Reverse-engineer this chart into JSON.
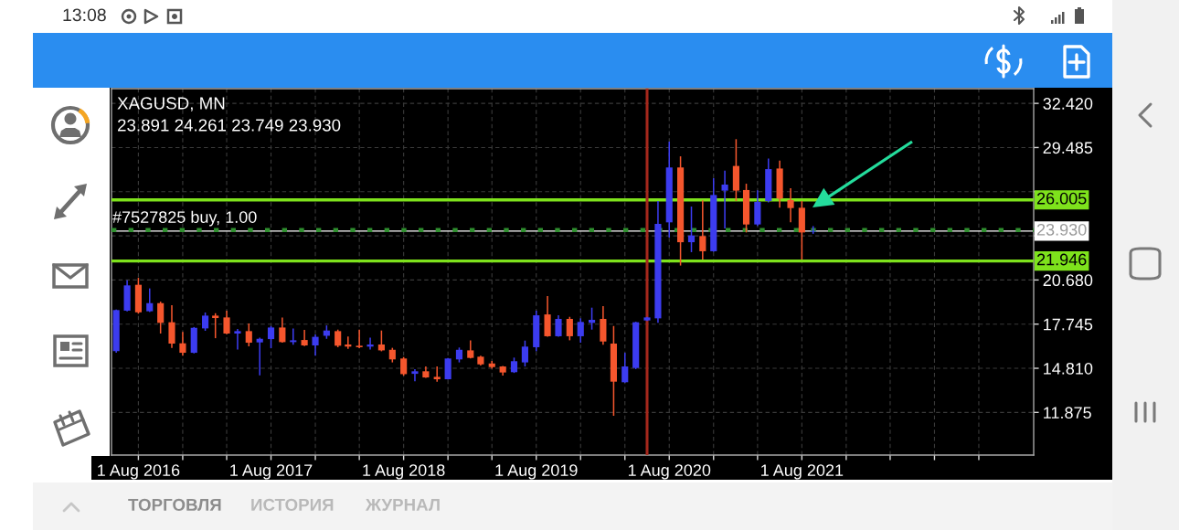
{
  "chart_data": {
    "type": "candlestick",
    "title": "XAGUSD, MN",
    "subtitle": "23.891 24.261 23.749 23.930",
    "annotations": [
      "13:08",
      "ТОРГОВЛЯ",
      "ИСТОРИЯ",
      "ЖУРНАЛ"
    ],
    "x": [
      "2016-06",
      "2016-07",
      "2016-08",
      "2016-09",
      "2016-10",
      "2016-11",
      "2016-12",
      "2017-01",
      "2017-02",
      "2017-03",
      "2017-04",
      "2017-05",
      "2017-06",
      "2017-07",
      "2017-08",
      "2017-09",
      "2017-10",
      "2017-11",
      "2017-12",
      "2018-01",
      "2018-02",
      "2018-03",
      "2018-04",
      "2018-05",
      "2018-06",
      "2018-07",
      "2018-08",
      "2018-09",
      "2018-10",
      "2018-11",
      "2018-12",
      "2019-01",
      "2019-02",
      "2019-03",
      "2019-04",
      "2019-05",
      "2019-06",
      "2019-07",
      "2019-08",
      "2019-09",
      "2019-10",
      "2019-11",
      "2019-12",
      "2020-01",
      "2020-02",
      "2020-03",
      "2020-04",
      "2020-05",
      "2020-06",
      "2020-07",
      "2020-08",
      "2020-09",
      "2020-10",
      "2020-11",
      "2020-12",
      "2021-01",
      "2021-02",
      "2021-03",
      "2021-04",
      "2021-05",
      "2021-06",
      "2021-07",
      "2021-08",
      "2021-09"
    ],
    "ohlc": [
      [
        15.95,
        18.72,
        15.84,
        18.68
      ],
      [
        18.64,
        20.66,
        18.6,
        20.32
      ],
      [
        20.36,
        20.82,
        18.44,
        18.53
      ],
      [
        18.6,
        20.12,
        18.55,
        19.14
      ],
      [
        19.14,
        19.24,
        17.12,
        17.83
      ],
      [
        17.87,
        19.0,
        16.17,
        16.45
      ],
      [
        16.47,
        17.22,
        15.64,
        15.84
      ],
      [
        15.84,
        17.55,
        15.8,
        17.5
      ],
      [
        17.46,
        18.52,
        17.3,
        18.31
      ],
      [
        18.31,
        18.47,
        16.81,
        18.15
      ],
      [
        18.19,
        18.64,
        17.08,
        17.12
      ],
      [
        17.12,
        17.42,
        16.06,
        17.28
      ],
      [
        17.28,
        17.79,
        16.27,
        16.51
      ],
      [
        16.53,
        16.85,
        14.34,
        16.77
      ],
      [
        16.75,
        17.62,
        16.15,
        17.52
      ],
      [
        17.52,
        18.19,
        16.51,
        16.55
      ],
      [
        16.55,
        17.46,
        16.37,
        16.67
      ],
      [
        16.69,
        17.36,
        16.29,
        16.33
      ],
      [
        16.33,
        17.06,
        15.64,
        16.9
      ],
      [
        16.97,
        17.66,
        16.77,
        17.32
      ],
      [
        17.28,
        17.38,
        16.21,
        16.31
      ],
      [
        16.39,
        16.92,
        16.1,
        16.25
      ],
      [
        16.31,
        17.38,
        16.15,
        16.21
      ],
      [
        16.25,
        16.85,
        16.06,
        16.39
      ],
      [
        16.39,
        17.32,
        15.94,
        16.0
      ],
      [
        16.04,
        16.17,
        15.2,
        15.4
      ],
      [
        15.46,
        15.56,
        14.32,
        14.42
      ],
      [
        14.44,
        14.75,
        13.94,
        14.61
      ],
      [
        14.61,
        14.93,
        14.18,
        14.2
      ],
      [
        14.24,
        14.93,
        13.92,
        14.08
      ],
      [
        14.08,
        15.5,
        14.06,
        15.46
      ],
      [
        15.4,
        16.19,
        15.2,
        16.04
      ],
      [
        16.0,
        16.67,
        15.46,
        15.5
      ],
      [
        15.58,
        15.64,
        14.99,
        15.07
      ],
      [
        15.13,
        15.3,
        14.79,
        14.89
      ],
      [
        14.93,
        14.97,
        14.32,
        14.53
      ],
      [
        14.55,
        15.52,
        14.5,
        15.28
      ],
      [
        15.2,
        16.65,
        14.93,
        16.25
      ],
      [
        16.21,
        18.64,
        15.94,
        18.33
      ],
      [
        18.39,
        19.61,
        16.9,
        16.94
      ],
      [
        16.94,
        18.33,
        16.9,
        18.09
      ],
      [
        18.09,
        18.23,
        16.67,
        16.94
      ],
      [
        16.94,
        18.13,
        16.51,
        17.89
      ],
      [
        17.83,
        18.84,
        17.38,
        18.03
      ],
      [
        18.09,
        18.94,
        16.37,
        16.59
      ],
      [
        16.45,
        17.62,
        11.65,
        13.92
      ],
      [
        13.88,
        15.84,
        13.85,
        14.93
      ],
      [
        14.83,
        17.9,
        14.75,
        17.87
      ],
      [
        17.99,
        18.23,
        17.95,
        18.19
      ],
      [
        18.13,
        25.93,
        17.83,
        24.41
      ],
      [
        24.51,
        29.88,
        23.5,
        28.16
      ],
      [
        28.16,
        28.9,
        21.64,
        23.19
      ],
      [
        23.19,
        25.56,
        22.53,
        23.64
      ],
      [
        23.6,
        25.97,
        22.04,
        22.59
      ],
      [
        22.59,
        27.45,
        22.55,
        26.33
      ],
      [
        26.62,
        27.95,
        24.11,
        27.02
      ],
      [
        28.26,
        30.04,
        25.93,
        26.62
      ],
      [
        26.66,
        27.08,
        23.84,
        24.37
      ],
      [
        24.37,
        26.64,
        24.27,
        25.87
      ],
      [
        25.93,
        28.76,
        25.83,
        28.05
      ],
      [
        28.09,
        28.62,
        25.48,
        26.09
      ],
      [
        25.99,
        26.78,
        24.51,
        25.46
      ],
      [
        25.48,
        25.93,
        22.04,
        23.84
      ],
      [
        23.891,
        24.261,
        23.749,
        23.93
      ]
    ],
    "colors": [
      "#3c3cf0",
      "#3c3cf0",
      "#f5562d",
      "#3c3cf0",
      "#f5562d",
      "#f5562d",
      "#f5562d",
      "#3c3cf0",
      "#3c3cf0",
      "#f5562d",
      "#f5562d",
      "#3c3cf0",
      "#f5562d",
      "#3c3cf0",
      "#3c3cf0",
      "#f5562d",
      "#3c3cf0",
      "#f5562d",
      "#3c3cf0",
      "#3c3cf0",
      "#f5562d",
      "#f5562d",
      "#f5562d",
      "#3c3cf0",
      "#f5562d",
      "#f5562d",
      "#f5562d",
      "#3c3cf0",
      "#f5562d",
      "#f5562d",
      "#3c3cf0",
      "#3c3cf0",
      "#f5562d",
      "#f5562d",
      "#f5562d",
      "#f5562d",
      "#3c3cf0",
      "#3c3cf0",
      "#3c3cf0",
      "#f5562d",
      "#3c3cf0",
      "#f5562d",
      "#3c3cf0",
      "#3c3cf0",
      "#f5562d",
      "#f5562d",
      "#3c3cf0",
      "#3c3cf0",
      "#3c3cf0",
      "#3c3cf0",
      "#3c3cf0",
      "#f5562d",
      "#3c3cf0",
      "#f5562d",
      "#3c3cf0",
      "#3c3cf0",
      "#f5562d",
      "#f5562d",
      "#3c3cf0",
      "#3c3cf0",
      "#f5562d",
      "#f5562d",
      "#f5562d",
      "#3c3cf0"
    ],
    "xlim": [
      "2016-05-19",
      "2023-05-01"
    ],
    "ylim": [
      9.04,
      33.4
    ],
    "xticks": [
      {
        "value": "2016-08-01",
        "label": "1 Aug 2016"
      },
      {
        "value": "2016-12-01",
        "label": null
      },
      {
        "value": "2017-04-01",
        "label": null
      },
      {
        "value": "2017-08-01",
        "label": "1 Aug 2017"
      },
      {
        "value": "2017-12-01",
        "label": null
      },
      {
        "value": "2018-04-01",
        "label": null
      },
      {
        "value": "2018-08-01",
        "label": "1 Aug 2018"
      },
      {
        "value": "2018-12-01",
        "label": null
      },
      {
        "value": "2019-04-01",
        "label": null
      },
      {
        "value": "2019-08-01",
        "label": "1 Aug 2019"
      },
      {
        "value": "2019-12-01",
        "label": null
      },
      {
        "value": "2020-04-01",
        "label": null
      },
      {
        "value": "2020-08-01",
        "label": "1 Aug 2020"
      },
      {
        "value": "2020-12-01",
        "label": null
      },
      {
        "value": "2021-04-01",
        "label": null
      },
      {
        "value": "2021-08-01",
        "label": "1 Aug 2021"
      },
      {
        "value": "2021-12-01",
        "label": null
      },
      {
        "value": "2022-04-01",
        "label": null
      },
      {
        "value": "2022-08-01",
        "label": null
      },
      {
        "value": "2022-12-01",
        "label": null
      }
    ],
    "yticks": [
      {
        "value": 32.42,
        "label": "32.420"
      },
      {
        "value": 29.485,
        "label": "29.485"
      },
      {
        "value": 26.55,
        "label": null
      },
      {
        "value": 23.615,
        "label": null
      },
      {
        "value": 20.68,
        "label": "20.680"
      },
      {
        "value": 17.745,
        "label": "17.745"
      },
      {
        "value": 14.81,
        "label": "14.810"
      },
      {
        "value": 11.875,
        "label": "11.875"
      }
    ],
    "grid": true,
    "ref_lines": [
      {
        "axis": "y",
        "value": 26.005,
        "label": "26.005",
        "color": "#7ee21c"
      },
      {
        "axis": "y",
        "value": 21.946,
        "label": "21.946",
        "color": "#7ee21c"
      },
      {
        "axis": "y",
        "value": 23.93,
        "label": "23.930",
        "color": "#ffffff"
      },
      {
        "axis": "y",
        "value": 24.0,
        "label": "#7527825 buy, 1.00",
        "color": "#2f8f2f",
        "line_style": "dashed"
      },
      {
        "axis": "x",
        "value": "2020-06",
        "color": "#a5281c"
      }
    ]
  }
}
